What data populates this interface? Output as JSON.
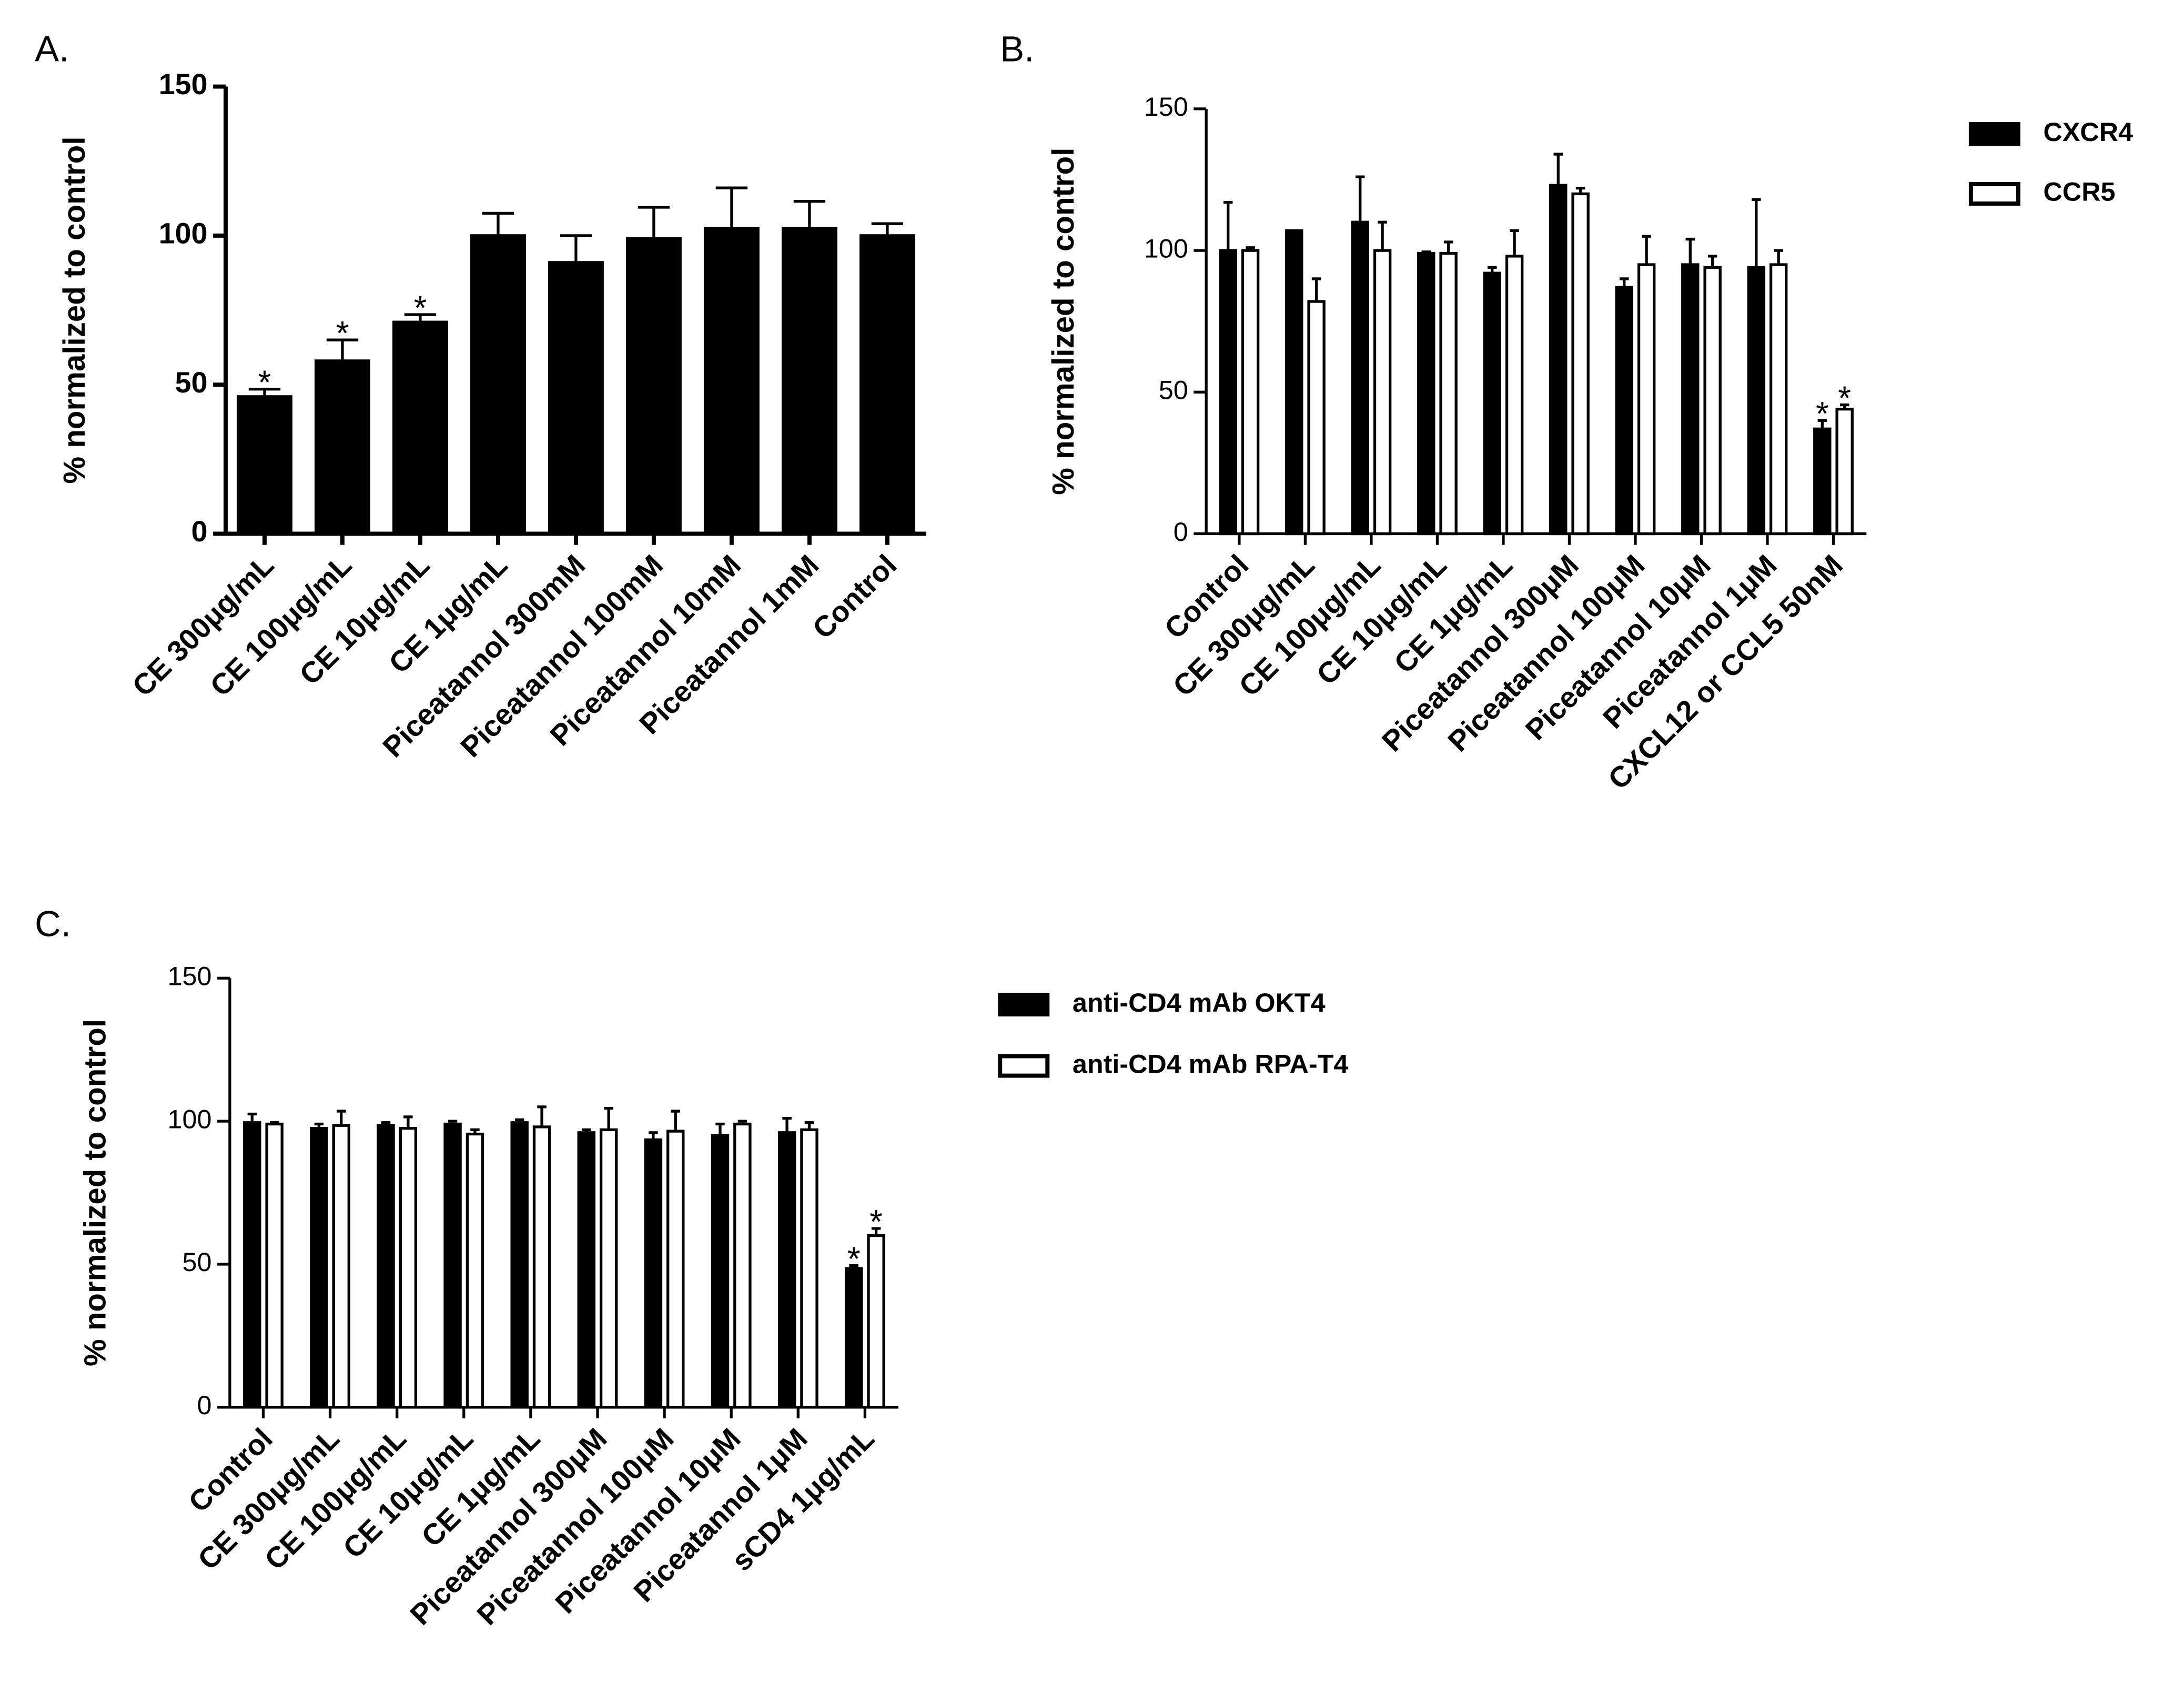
{
  "chart_data": [
    {
      "type": "bar",
      "panel_label": "A.",
      "y_label": "% normalized to control",
      "categories": [
        "CE 300μg/mL",
        "CE 100μg/mL",
        "CE 10μg/mL",
        "CE 1μg/mL",
        "Piceatannol 300mM",
        "Piceatannol 100mM",
        "Piceatannol 10mM",
        "Piceatannol 1mM",
        "Control"
      ],
      "values": [
        46,
        58,
        71,
        100,
        91,
        99,
        102.5,
        102.5,
        100
      ],
      "errors": [
        2.5,
        7,
        2.5,
        7.5,
        9,
        10.5,
        13.5,
        9,
        4
      ],
      "significance": [
        "*",
        "*",
        "*",
        null,
        null,
        null,
        null,
        null,
        null
      ],
      "color": "#000000",
      "ylim": [
        0,
        150
      ],
      "yticks": [
        0,
        50,
        100,
        150
      ],
      "grid": false
    },
    {
      "type": "bar",
      "panel_label": "B.",
      "y_label": "% normalized to control",
      "categories": [
        "Control",
        "CE 300μg/mL",
        "CE 100μg/mL",
        "CE 10μg/mL",
        "CE 1μg/mL",
        "Piceatannol 300μM",
        "Piceatannol 100μM",
        "Piceatannol 10μM",
        "Piceatannol 1μM",
        "CXCL12 or CCL5 50nM"
      ],
      "series": [
        {
          "name": "CXCR4",
          "color": "#000000",
          "values": [
            100,
            107,
            110,
            99,
            92,
            123,
            87,
            95,
            94,
            37
          ],
          "errors": [
            17,
            0,
            16,
            0.5,
            2,
            11,
            3,
            9,
            24,
            3
          ],
          "significance": [
            null,
            null,
            null,
            null,
            null,
            null,
            null,
            null,
            null,
            "*"
          ]
        },
        {
          "name": "CCR5",
          "color": "#ffffff",
          "values": [
            100,
            82,
            100,
            99,
            98,
            120,
            95,
            94,
            95,
            44
          ],
          "errors": [
            1,
            8,
            10,
            4,
            9,
            2,
            10,
            4,
            5,
            1.5
          ],
          "significance": [
            null,
            null,
            null,
            null,
            null,
            null,
            null,
            null,
            null,
            "*"
          ]
        }
      ],
      "ylim": [
        0,
        150
      ],
      "yticks": [
        0,
        50,
        100,
        150
      ],
      "grid": false,
      "legend": "right"
    },
    {
      "type": "bar",
      "panel_label": "C.",
      "y_label": "% normalized to control",
      "categories": [
        "Control",
        "CE 300μg/mL",
        "CE 100μg/mL",
        "CE 10μg/mL",
        "CE 1μg/mL",
        "Piceatannol 300μM",
        "Piceatannol 100μM",
        "Piceatannol 10μM",
        "Piceatannol 1μM",
        "sCD4 1μg/mL"
      ],
      "series": [
        {
          "name": "anti-CD4 mAb OKT4",
          "color": "#000000",
          "values": [
            99.5,
            97.5,
            98.5,
            99,
            99.5,
            96,
            93.5,
            95,
            96,
            48.5
          ],
          "errors": [
            3,
            1.5,
            1,
            1,
            1,
            1,
            2.5,
            4,
            5,
            1
          ],
          "significance": [
            null,
            null,
            null,
            null,
            null,
            null,
            null,
            null,
            null,
            "*"
          ]
        },
        {
          "name": "anti-CD4 mAb RPA-T4",
          "color": "#ffffff",
          "values": [
            99,
            98.5,
            97.5,
            95.5,
            98,
            97,
            96.5,
            99,
            97,
            60
          ],
          "errors": [
            0.5,
            5,
            4,
            1.5,
            7,
            7.5,
            7,
            1,
            2.5,
            2.5
          ],
          "significance": [
            null,
            null,
            null,
            null,
            null,
            null,
            null,
            null,
            null,
            "*"
          ]
        }
      ],
      "ylim": [
        0,
        150
      ],
      "yticks": [
        0,
        50,
        100,
        150
      ],
      "grid": false,
      "legend": "right"
    }
  ]
}
